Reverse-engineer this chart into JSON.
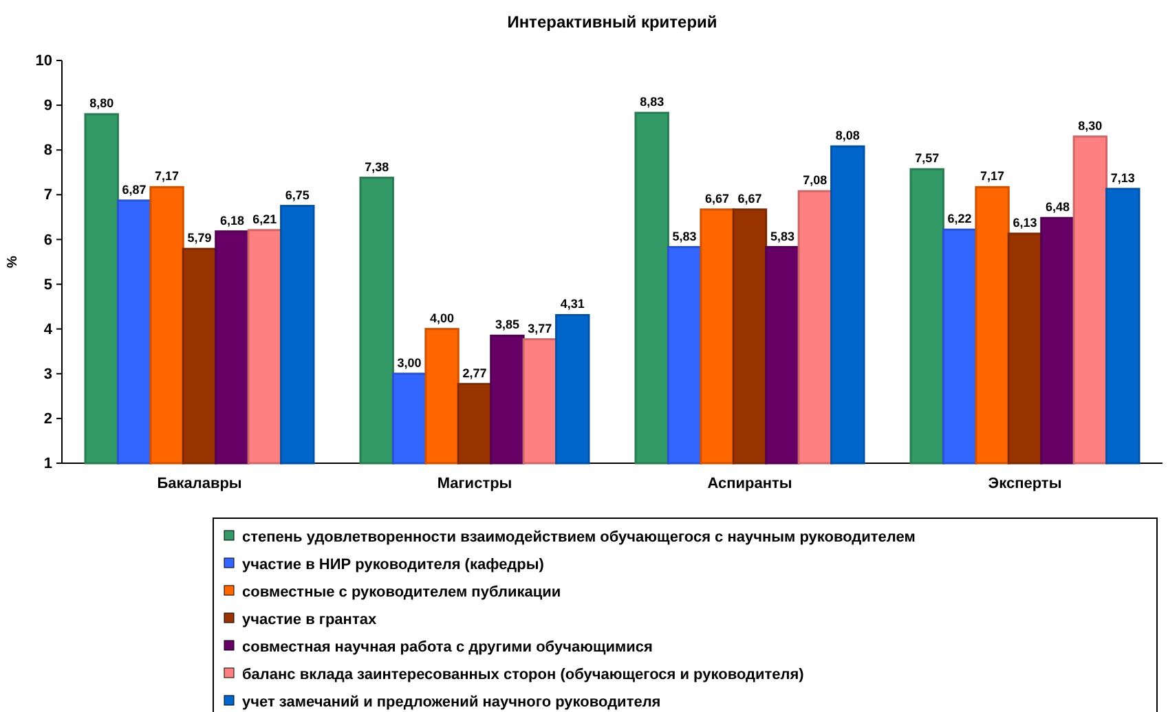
{
  "chart_data": {
    "type": "bar",
    "title": "Интерактивный критерий",
    "ylabel": "%",
    "categories": [
      "Бакалавры",
      "Магистры",
      "Аспиранты",
      "Эксперты"
    ],
    "series": [
      {
        "name": "степень удовлетворенности взаимодействием обучающегося с научным руководителем",
        "color": "#339966",
        "values": [
          8.8,
          7.38,
          8.83,
          7.57
        ],
        "value_labels": [
          "8,80",
          "7,38",
          "8,83",
          "7,57"
        ]
      },
      {
        "name": "участие в НИР руководителя (кафедры)",
        "color": "#3366ff",
        "values": [
          6.87,
          3.0,
          5.83,
          6.22
        ],
        "value_labels": [
          "6,87",
          "3,00",
          "5,83",
          "6,22"
        ]
      },
      {
        "name": "совместные с руководителем публикации",
        "color": "#ff6600",
        "values": [
          7.17,
          4.0,
          6.67,
          7.17
        ],
        "value_labels": [
          "7,17",
          "4,00",
          "6,67",
          "7,17"
        ]
      },
      {
        "name": "участие в грантах",
        "color": "#993300",
        "values": [
          5.79,
          2.77,
          6.67,
          6.13
        ],
        "value_labels": [
          "5,79",
          "2,77",
          "6,67",
          "6,13"
        ]
      },
      {
        "name": "совместная научная работа с другими обучающимися",
        "color": "#660066",
        "values": [
          6.18,
          3.85,
          5.83,
          6.48
        ],
        "value_labels": [
          "6,18",
          "3,85",
          "5,83",
          "6,48"
        ]
      },
      {
        "name": "баланс вклада заинтересованных сторон (обучающегося и руководителя)",
        "color": "#ff8080",
        "values": [
          6.21,
          3.77,
          7.08,
          8.3
        ],
        "value_labels": [
          "6,21",
          "3,77",
          "7,08",
          "8,30"
        ]
      },
      {
        "name": "учет замечаний и предложений научного руководителя",
        "color": "#0066cc",
        "values": [
          6.75,
          4.31,
          8.08,
          7.13
        ],
        "value_labels": [
          "6,75",
          "4,31",
          "8,08",
          "7,13"
        ]
      }
    ],
    "ylim": [
      1,
      10
    ],
    "yticks": [
      1,
      2,
      3,
      4,
      5,
      6,
      7,
      8,
      9,
      10
    ],
    "grid": false,
    "legend": "bottom"
  }
}
